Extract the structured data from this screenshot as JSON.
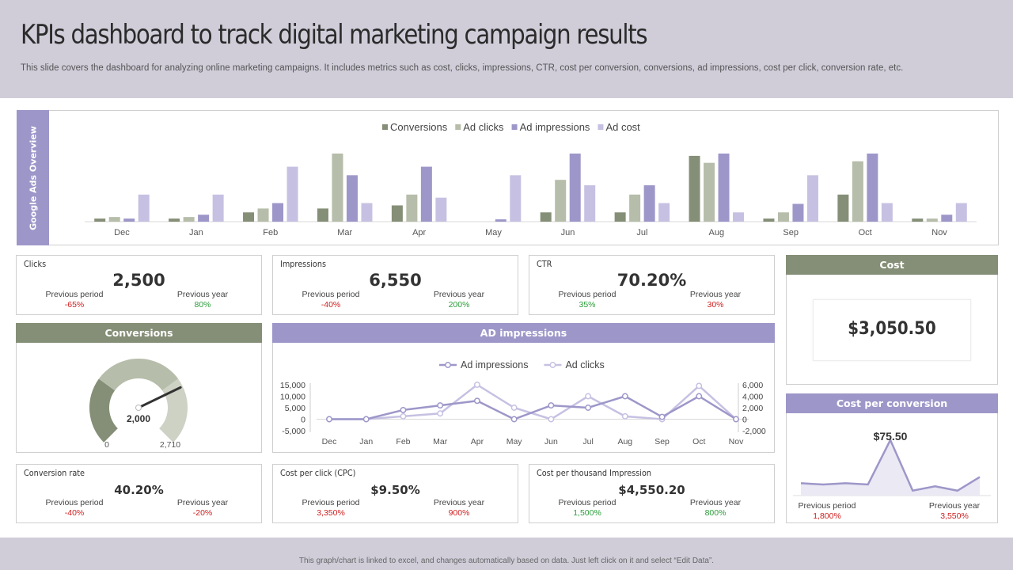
{
  "header": {
    "title": "KPIs dashboard to track digital marketing campaign results",
    "subtitle": "This slide covers the dashboard for analyzing online marketing campaigns. It includes metrics such as cost, clicks, impressions, CTR, cost per conversion, conversions, ad impressions, cost per click, conversion rate, etc."
  },
  "footer": {
    "note": "This graph/chart is linked to excel, and changes automatically based on data. Just left click on it and select “Edit Data”."
  },
  "side_tab": "Google Ads Overview",
  "kpis": {
    "clicks": {
      "label": "Clicks",
      "value": "2,500",
      "prev_period_label": "Previous period",
      "prev_period": "-65%",
      "prev_year_label": "Previous year",
      "prev_year": "80%"
    },
    "impressions": {
      "label": "Impressions",
      "value": "6,550",
      "prev_period_label": "Previous period",
      "prev_period": "-40%",
      "prev_year_label": "Previous year",
      "prev_year": "200%"
    },
    "ctr": {
      "label": "CTR",
      "value": "70.20%",
      "prev_period_label": "Previous period",
      "prev_period": "35%",
      "prev_year_label": "Previous year",
      "prev_year": "30%"
    },
    "conversion_rate": {
      "label": "Conversion rate",
      "value": "40.20%",
      "prev_period_label": "Previous period",
      "prev_period": "-40%",
      "prev_year_label": "Previous year",
      "prev_year": "-20%"
    },
    "cpc": {
      "label": "Cost per click (CPC)",
      "value": "$9.50%",
      "prev_period_label": "Previous period",
      "prev_period": "3,350%",
      "prev_year_label": "Previous year",
      "prev_year": "900%"
    },
    "cpm": {
      "label": "Cost per thousand Impression",
      "value": "$4,550.20",
      "prev_period_label": "Previous period",
      "prev_period": "1,500%",
      "prev_year_label": "Previous year",
      "prev_year": "800%"
    }
  },
  "cost": {
    "title": "Cost",
    "value": "$3,050.50"
  },
  "conversions_panel": {
    "title": "Conversions"
  },
  "ad_impressions_panel": {
    "title": "AD impressions"
  },
  "cpconv_panel": {
    "title": "Cost per conversion",
    "prev_period_label": "Previous period",
    "prev_period": "1,800%",
    "prev_year_label": "Previous year",
    "prev_year": "3,550%"
  },
  "colors": {
    "green": "#858f77",
    "sage": "#b6bdaa",
    "purple": "#9d97c9",
    "lavender": "#c6c1e2",
    "negative": "#d02020",
    "positive": "#2a9d3a"
  },
  "chart_data": [
    {
      "type": "bar",
      "categories": [
        "Dec",
        "Jan",
        "Feb",
        "Mar",
        "Apr",
        "May",
        "Jun",
        "Jul",
        "Aug",
        "Sep",
        "Oct",
        "Nov"
      ],
      "series": [
        {
          "name": "Conversions",
          "color": "#858f77",
          "values": [
            4,
            4,
            12,
            17,
            21,
            0,
            12,
            12,
            85,
            4,
            35,
            4
          ]
        },
        {
          "name": "Ad clicks",
          "color": "#b6bdaa",
          "values": [
            6,
            6,
            17,
            88,
            35,
            0,
            54,
            35,
            76,
            12,
            78,
            4
          ]
        },
        {
          "name": "Ad impressions",
          "color": "#9d97c9",
          "values": [
            4,
            9,
            24,
            60,
            71,
            3,
            88,
            47,
            88,
            23,
            88,
            9
          ]
        },
        {
          "name": "Ad cost",
          "color": "#c6c1e2",
          "values": [
            35,
            35,
            71,
            24,
            31,
            60,
            47,
            24,
            12,
            60,
            24,
            24
          ]
        }
      ],
      "ylim": [
        0,
        90
      ],
      "legend": "top-center"
    },
    {
      "type": "gauge",
      "value": 2000,
      "min": 0,
      "max": 2710,
      "value_label": "2,000",
      "min_label": "0",
      "max_label": "2,710"
    },
    {
      "type": "line",
      "categories": [
        "Dec",
        "Jan",
        "Feb",
        "Mar",
        "Apr",
        "May",
        "Jun",
        "Jul",
        "Aug",
        "Sep",
        "Oct",
        "Nov"
      ],
      "series": [
        {
          "name": "Ad impressions",
          "axis": "left",
          "color": "#9d97c9",
          "values": [
            0,
            0,
            4000,
            6000,
            8000,
            0,
            6000,
            5000,
            10000,
            1000,
            10000,
            0
          ]
        },
        {
          "name": "Ad clicks",
          "axis": "right",
          "color": "#c6c1e2",
          "values": [
            0,
            0,
            500,
            1000,
            6000,
            2000,
            0,
            4000,
            500,
            0,
            5800,
            0
          ]
        }
      ],
      "y_left": {
        "ticks": [
          "15,000",
          "10,000",
          "5,000",
          "0",
          "-5,000"
        ],
        "values": [
          15000,
          10000,
          5000,
          0,
          -5000
        ],
        "lim": [
          -5000,
          15000
        ]
      },
      "y_right": {
        "ticks": [
          "6,000",
          "4,000",
          "2,000",
          "0",
          "-2,000"
        ],
        "values": [
          6000,
          4000,
          2000,
          0,
          -2000
        ],
        "lim": [
          -2000,
          6000
        ]
      },
      "legend": "top-center"
    },
    {
      "type": "area",
      "values": [
        20,
        18,
        20,
        18,
        90,
        8,
        15,
        8,
        30
      ],
      "ylim": [
        0,
        100
      ],
      "peak_label": "$75.50"
    }
  ]
}
